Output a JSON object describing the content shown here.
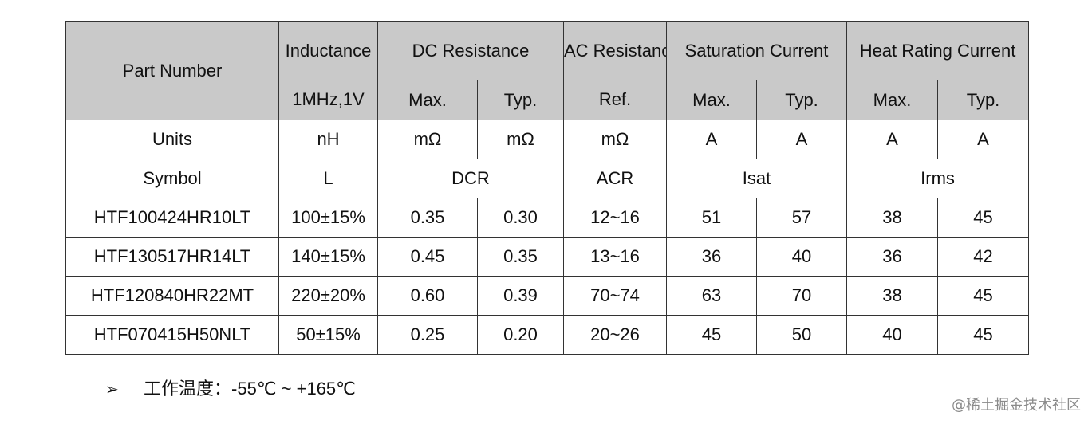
{
  "table": {
    "headers": {
      "part_number": "Part Number",
      "inductance": "Inductance",
      "inductance_cond": "1MHz,1V",
      "dc_resistance": "DC Resistance",
      "ac_resistance": "AC Resistance",
      "saturation_current": "Saturation Current",
      "heat_rating_current": "Heat Rating Current",
      "max": "Max.",
      "typ": "Typ.",
      "ref": "Ref."
    },
    "units": {
      "label": "Units",
      "inductance": "nH",
      "dcr_max": "mΩ",
      "dcr_typ": "mΩ",
      "acr": "mΩ",
      "isat_max": "A",
      "isat_typ": "A",
      "irms_max": "A",
      "irms_typ": "A"
    },
    "symbols": {
      "label": "Symbol",
      "inductance": "L",
      "dcr": "DCR",
      "acr": "ACR",
      "isat": "Isat",
      "irms": "Irms"
    },
    "rows": [
      {
        "part": "HTF100424HR10LT",
        "l": "100±15%",
        "dcr_max": "0.35",
        "dcr_typ": "0.30",
        "acr": "12~16",
        "isat_max": "51",
        "isat_typ": "57",
        "irms_max": "38",
        "irms_typ": "45"
      },
      {
        "part": "HTF130517HR14LT",
        "l": "140±15%",
        "dcr_max": "0.45",
        "dcr_typ": "0.35",
        "acr": "13~16",
        "isat_max": "36",
        "isat_typ": "40",
        "irms_max": "36",
        "irms_typ": "42"
      },
      {
        "part": "HTF120840HR22MT",
        "l": "220±20%",
        "dcr_max": "0.60",
        "dcr_typ": "0.39",
        "acr": "70~74",
        "isat_max": "63",
        "isat_typ": "70",
        "irms_max": "38",
        "irms_typ": "45"
      },
      {
        "part": "HTF070415H50NLT",
        "l": "50±15%",
        "dcr_max": "0.25",
        "dcr_typ": "0.20",
        "acr": "20~26",
        "isat_max": "45",
        "isat_typ": "50",
        "irms_max": "40",
        "irms_typ": "45"
      }
    ]
  },
  "note": {
    "bullet": "➢",
    "label": "工作温度：",
    "value": "-55℃ ~ +165℃"
  },
  "watermark": "@稀土掘金技术社区"
}
